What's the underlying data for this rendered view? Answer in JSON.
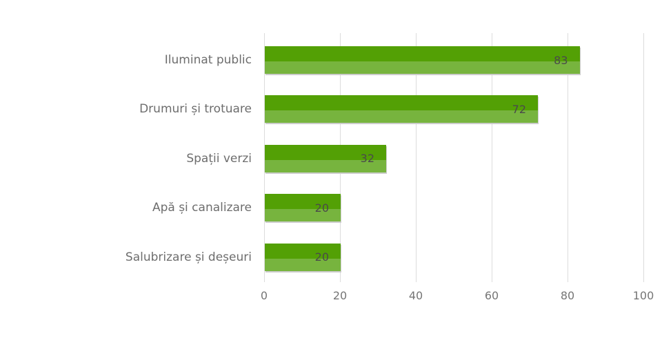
{
  "chart_data": {
    "type": "bar",
    "orientation": "horizontal",
    "title": "",
    "categories": [
      "Iluminat public",
      "Drumuri și trotuare",
      "Spații verzi",
      "Apă și canalizare",
      "Salubrizare și deșeuri"
    ],
    "values": [
      83,
      72,
      32,
      20,
      20
    ],
    "x_ticks": [
      0,
      20,
      40,
      60,
      80,
      100
    ],
    "xlim": [
      0,
      100
    ],
    "xlabel": "",
    "ylabel": "",
    "grid": true,
    "legend": false,
    "value_labels_inside_bar": true,
    "colors": {
      "bar_top": "#53a005",
      "bar_bottom": "#77b43e",
      "bar_shadow": "#cccccc",
      "gridline": "#dcdcdc",
      "category_label": "#6d6d6d",
      "tick_label": "#757575",
      "value_label": "#4a4a4a",
      "background": "#ffffff"
    }
  }
}
